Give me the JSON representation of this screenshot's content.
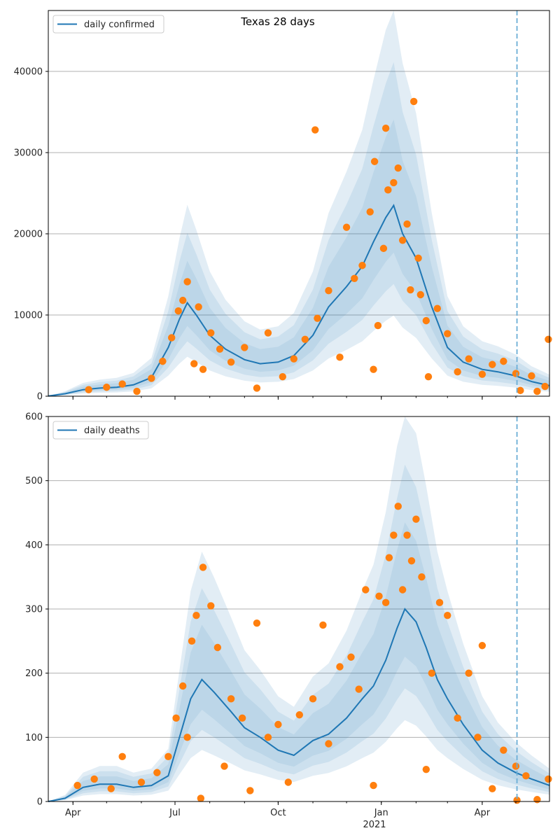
{
  "figure": {
    "title": "Texas 28 days",
    "xlabel_year": "2021"
  },
  "colors": {
    "line": "#1f77b4",
    "points": "#ff7f0e",
    "band": "#1f77b4",
    "grid": "#b0b0b0",
    "marker_line": "#6baed6"
  },
  "chart_data": [
    {
      "type": "line",
      "name": "daily confirmed",
      "title": "Texas 28 days",
      "legend": "daily confirmed",
      "legend_position": "top-left",
      "grid": "horizontal",
      "xlabel": "",
      "ylabel": "",
      "date_range": [
        "2020-03-10",
        "2021-05-31"
      ],
      "ylim": [
        0,
        47500
      ],
      "yticks": [
        0,
        10000,
        20000,
        30000,
        40000
      ],
      "xtick_labels": [
        "Apr",
        "Jul",
        "Oct",
        "Jan",
        "Apr"
      ],
      "xtick_dates": [
        "2020-04-01",
        "2020-07-01",
        "2020-10-01",
        "2021-01-01",
        "2021-04-01"
      ],
      "vertical_marker_date": "2021-05-02",
      "line_points": [
        [
          "2020-03-10",
          20
        ],
        [
          "2020-03-25",
          300
        ],
        [
          "2020-04-10",
          800
        ],
        [
          "2020-04-25",
          1000
        ],
        [
          "2020-05-10",
          1100
        ],
        [
          "2020-05-25",
          1400
        ],
        [
          "2020-06-10",
          2300
        ],
        [
          "2020-06-25",
          6000
        ],
        [
          "2020-07-05",
          9500
        ],
        [
          "2020-07-12",
          11500
        ],
        [
          "2020-07-20",
          10000
        ],
        [
          "2020-08-01",
          7500
        ],
        [
          "2020-08-15",
          5800
        ],
        [
          "2020-09-01",
          4500
        ],
        [
          "2020-09-15",
          4000
        ],
        [
          "2020-10-01",
          4200
        ],
        [
          "2020-10-15",
          5000
        ],
        [
          "2020-11-01",
          7500
        ],
        [
          "2020-11-15",
          11000
        ],
        [
          "2020-12-01",
          13500
        ],
        [
          "2020-12-15",
          16000
        ],
        [
          "2020-12-25",
          19000
        ],
        [
          "2021-01-05",
          22000
        ],
        [
          "2021-01-12",
          23500
        ],
        [
          "2021-01-20",
          20000
        ],
        [
          "2021-02-01",
          17000
        ],
        [
          "2021-02-15",
          11000
        ],
        [
          "2021-03-01",
          6000
        ],
        [
          "2021-03-15",
          4200
        ],
        [
          "2021-04-01",
          3300
        ],
        [
          "2021-04-15",
          3000
        ],
        [
          "2021-05-01",
          2500
        ],
        [
          "2021-05-15",
          1800
        ],
        [
          "2021-05-31",
          1300
        ]
      ],
      "scatter_points": [
        [
          "2020-04-15",
          800
        ],
        [
          "2020-05-01",
          1100
        ],
        [
          "2020-05-15",
          1500
        ],
        [
          "2020-05-28",
          600
        ],
        [
          "2020-06-10",
          2200
        ],
        [
          "2020-06-20",
          4300
        ],
        [
          "2020-06-28",
          7200
        ],
        [
          "2020-07-04",
          10500
        ],
        [
          "2020-07-08",
          11800
        ],
        [
          "2020-07-12",
          14100
        ],
        [
          "2020-07-18",
          4000
        ],
        [
          "2020-07-22",
          11000
        ],
        [
          "2020-07-26",
          3300
        ],
        [
          "2020-08-02",
          7800
        ],
        [
          "2020-08-10",
          5800
        ],
        [
          "2020-08-20",
          4200
        ],
        [
          "2020-09-01",
          6000
        ],
        [
          "2020-09-12",
          1000
        ],
        [
          "2020-09-22",
          7800
        ],
        [
          "2020-10-05",
          2400
        ],
        [
          "2020-10-15",
          4600
        ],
        [
          "2020-10-25",
          7000
        ],
        [
          "2020-11-03",
          32800
        ],
        [
          "2020-11-05",
          9600
        ],
        [
          "2020-11-15",
          13000
        ],
        [
          "2020-11-25",
          4800
        ],
        [
          "2020-12-01",
          20800
        ],
        [
          "2020-12-08",
          14500
        ],
        [
          "2020-12-15",
          16100
        ],
        [
          "2020-12-22",
          22700
        ],
        [
          "2020-12-25",
          3300
        ],
        [
          "2020-12-26",
          28900
        ],
        [
          "2020-12-29",
          8700
        ],
        [
          "2021-01-03",
          18200
        ],
        [
          "2021-01-05",
          33000
        ],
        [
          "2021-01-07",
          25400
        ],
        [
          "2021-01-12",
          26300
        ],
        [
          "2021-01-16",
          28100
        ],
        [
          "2021-01-20",
          19200
        ],
        [
          "2021-01-24",
          21200
        ],
        [
          "2021-01-27",
          13100
        ],
        [
          "2021-01-30",
          36300
        ],
        [
          "2021-02-03",
          17000
        ],
        [
          "2021-02-05",
          12500
        ],
        [
          "2021-02-10",
          9300
        ],
        [
          "2021-02-12",
          2400
        ],
        [
          "2021-02-20",
          10800
        ],
        [
          "2021-03-01",
          7700
        ],
        [
          "2021-03-10",
          3000
        ],
        [
          "2021-03-20",
          4600
        ],
        [
          "2021-04-01",
          2700
        ],
        [
          "2021-04-10",
          3900
        ],
        [
          "2021-04-20",
          4300
        ],
        [
          "2021-05-01",
          2800
        ],
        [
          "2021-05-05",
          700
        ],
        [
          "2021-05-15",
          2500
        ],
        [
          "2021-05-20",
          600
        ],
        [
          "2021-05-27",
          1200
        ],
        [
          "2021-05-30",
          7000
        ]
      ]
    },
    {
      "type": "line",
      "name": "daily deaths",
      "legend": "daily deaths",
      "legend_position": "top-left",
      "grid": "horizontal",
      "xlabel": "2021",
      "ylabel": "",
      "date_range": [
        "2020-03-10",
        "2021-05-31"
      ],
      "ylim": [
        0,
        600
      ],
      "yticks": [
        0,
        100,
        200,
        300,
        400,
        500,
        600
      ],
      "xtick_labels": [
        "Apr",
        "Jul",
        "Oct",
        "Jan",
        "Apr"
      ],
      "xtick_dates": [
        "2020-04-01",
        "2020-07-01",
        "2020-10-01",
        "2021-01-01",
        "2021-04-01"
      ],
      "vertical_marker_date": "2021-05-02",
      "line_points": [
        [
          "2020-03-10",
          0
        ],
        [
          "2020-03-25",
          5
        ],
        [
          "2020-04-10",
          22
        ],
        [
          "2020-04-25",
          27
        ],
        [
          "2020-05-10",
          27
        ],
        [
          "2020-05-25",
          22
        ],
        [
          "2020-06-10",
          25
        ],
        [
          "2020-06-25",
          40
        ],
        [
          "2020-07-05",
          100
        ],
        [
          "2020-07-15",
          160
        ],
        [
          "2020-07-25",
          190
        ],
        [
          "2020-08-05",
          170
        ],
        [
          "2020-08-20",
          140
        ],
        [
          "2020-09-01",
          115
        ],
        [
          "2020-09-15",
          100
        ],
        [
          "2020-10-01",
          80
        ],
        [
          "2020-10-15",
          72
        ],
        [
          "2020-11-01",
          95
        ],
        [
          "2020-11-15",
          105
        ],
        [
          "2020-12-01",
          130
        ],
        [
          "2020-12-15",
          160
        ],
        [
          "2020-12-25",
          180
        ],
        [
          "2021-01-05",
          220
        ],
        [
          "2021-01-15",
          270
        ],
        [
          "2021-01-22",
          300
        ],
        [
          "2021-02-01",
          280
        ],
        [
          "2021-02-10",
          240
        ],
        [
          "2021-02-20",
          190
        ],
        [
          "2021-03-01",
          160
        ],
        [
          "2021-03-15",
          120
        ],
        [
          "2021-04-01",
          80
        ],
        [
          "2021-04-15",
          60
        ],
        [
          "2021-05-01",
          45
        ],
        [
          "2021-05-15",
          35
        ],
        [
          "2021-05-31",
          25
        ]
      ],
      "scatter_points": [
        [
          "2020-04-05",
          25
        ],
        [
          "2020-04-20",
          35
        ],
        [
          "2020-05-05",
          20
        ],
        [
          "2020-05-15",
          70
        ],
        [
          "2020-06-01",
          30
        ],
        [
          "2020-06-15",
          45
        ],
        [
          "2020-06-25",
          70
        ],
        [
          "2020-07-02",
          130
        ],
        [
          "2020-07-08",
          180
        ],
        [
          "2020-07-12",
          100
        ],
        [
          "2020-07-16",
          250
        ],
        [
          "2020-07-20",
          290
        ],
        [
          "2020-07-24",
          5
        ],
        [
          "2020-07-26",
          365
        ],
        [
          "2020-08-02",
          305
        ],
        [
          "2020-08-08",
          240
        ],
        [
          "2020-08-14",
          55
        ],
        [
          "2020-08-20",
          160
        ],
        [
          "2020-08-30",
          130
        ],
        [
          "2020-09-06",
          17
        ],
        [
          "2020-09-12",
          278
        ],
        [
          "2020-09-22",
          100
        ],
        [
          "2020-10-01",
          120
        ],
        [
          "2020-10-10",
          30
        ],
        [
          "2020-10-20",
          135
        ],
        [
          "2020-11-01",
          160
        ],
        [
          "2020-11-10",
          275
        ],
        [
          "2020-11-15",
          90
        ],
        [
          "2020-11-25",
          210
        ],
        [
          "2020-12-05",
          225
        ],
        [
          "2020-12-12",
          175
        ],
        [
          "2020-12-18",
          330
        ],
        [
          "2020-12-25",
          25
        ],
        [
          "2020-12-30",
          320
        ],
        [
          "2021-01-05",
          310
        ],
        [
          "2021-01-08",
          380
        ],
        [
          "2021-01-12",
          415
        ],
        [
          "2021-01-16",
          460
        ],
        [
          "2021-01-20",
          330
        ],
        [
          "2021-01-24",
          415
        ],
        [
          "2021-01-28",
          375
        ],
        [
          "2021-02-01",
          440
        ],
        [
          "2021-02-06",
          350
        ],
        [
          "2021-02-10",
          50
        ],
        [
          "2021-02-15",
          200
        ],
        [
          "2021-02-22",
          310
        ],
        [
          "2021-03-01",
          290
        ],
        [
          "2021-03-10",
          130
        ],
        [
          "2021-03-20",
          200
        ],
        [
          "2021-03-28",
          100
        ],
        [
          "2021-04-01",
          243
        ],
        [
          "2021-04-10",
          20
        ],
        [
          "2021-04-20",
          80
        ],
        [
          "2021-05-01",
          55
        ],
        [
          "2021-05-02",
          2
        ],
        [
          "2021-05-10",
          40
        ],
        [
          "2021-05-20",
          3
        ],
        [
          "2021-05-30",
          35
        ]
      ]
    }
  ]
}
